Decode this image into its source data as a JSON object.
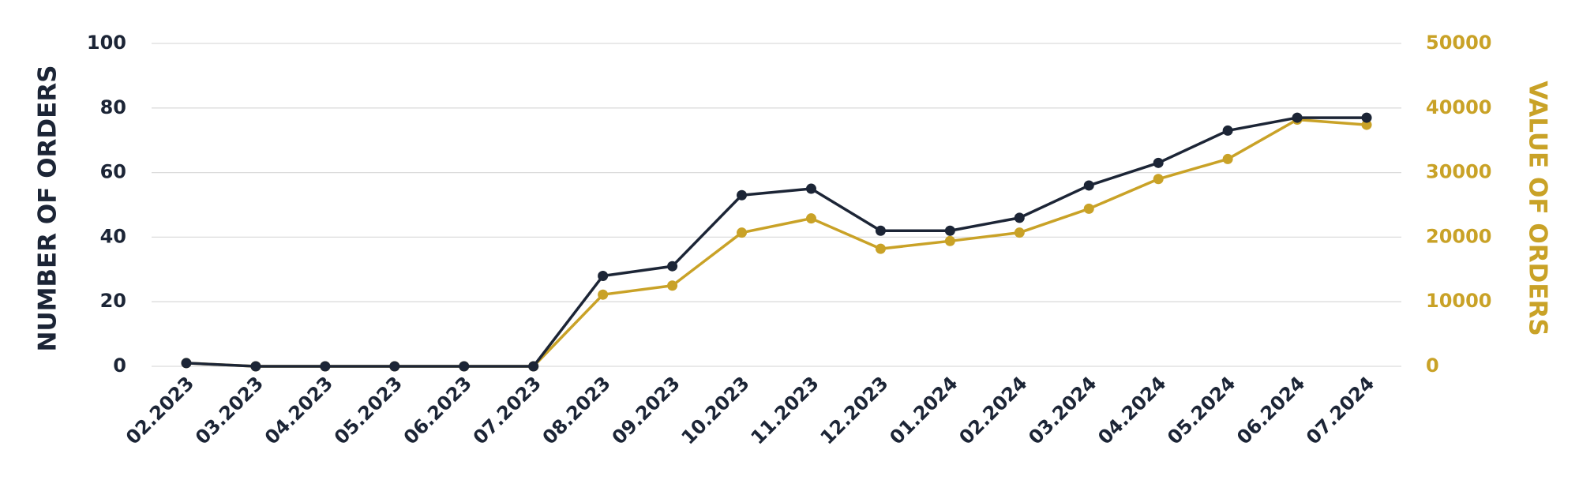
{
  "chart_data": {
    "type": "line",
    "categories": [
      "02.2023",
      "03.2023",
      "04.2023",
      "05.2023",
      "06.2023",
      "07.2023",
      "08.2023",
      "09.2023",
      "10.2023",
      "11.2023",
      "12.2023",
      "01.2024",
      "02.2024",
      "03.2024",
      "04.2024",
      "05.2024",
      "06.2024",
      "07.2024"
    ],
    "y_label": "NUMBER OF ORDERS",
    "y2_label": "VALUE OF ORDERS",
    "ylim": [
      0,
      100
    ],
    "yticks": [
      0,
      20,
      40,
      60,
      80,
      100
    ],
    "y2lim": [
      0,
      50000
    ],
    "y2ticks": [
      0,
      10000,
      20000,
      30000,
      40000,
      50000
    ],
    "grid": true,
    "series": [
      {
        "color": "#1c2536",
        "values": [
          1,
          0,
          0,
          0,
          0,
          0,
          28,
          31,
          53,
          55,
          42,
          42,
          46,
          56,
          63,
          73,
          77,
          77
        ]
      },
      {
        "color": "#c9a227",
        "axis": "y2",
        "values": [
          500,
          0,
          0,
          0,
          0,
          0,
          11100,
          12500,
          20700,
          22900,
          18200,
          19400,
          20700,
          24400,
          29000,
          32100,
          38200,
          37400
        ]
      }
    ]
  }
}
